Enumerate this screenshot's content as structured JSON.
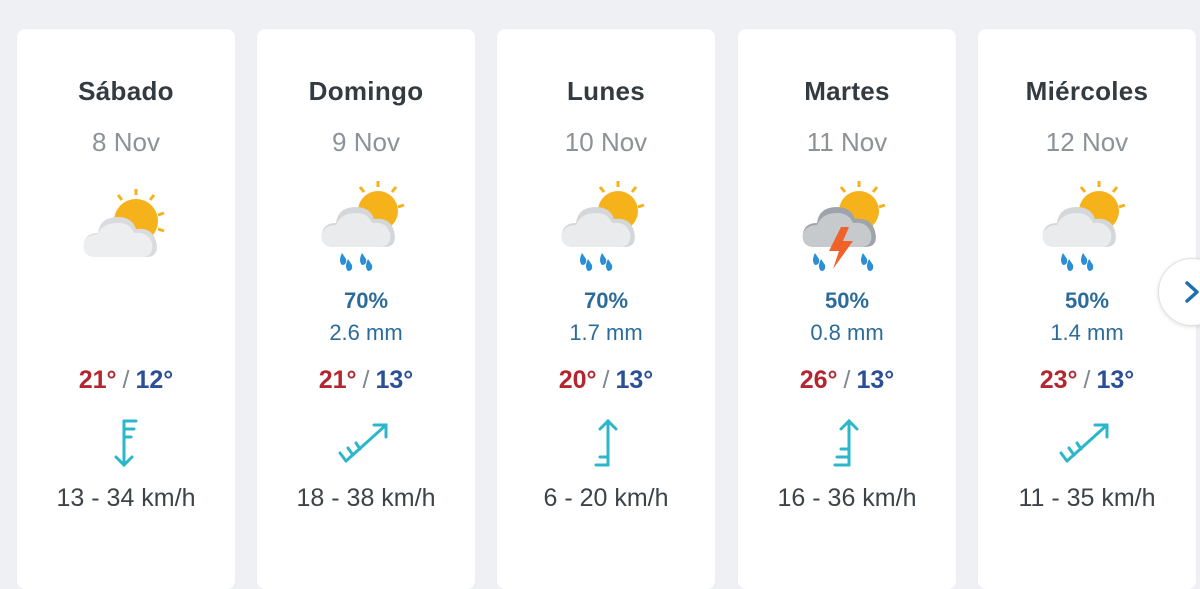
{
  "days": [
    {
      "day": "Sábado",
      "date": "8 Nov",
      "icon": "partly-cloudy-icon",
      "rain_prob": "",
      "rain_mm": "",
      "tmax": "21°",
      "tmin": "12°",
      "wind_dir": "south",
      "wind": "13 - 34 km/h"
    },
    {
      "day": "Domingo",
      "date": "9 Nov",
      "icon": "cloud-sun-rain-icon",
      "rain_prob": "70%",
      "rain_mm": "2.6 mm",
      "tmax": "21°",
      "tmin": "13°",
      "wind_dir": "northeast",
      "wind": "18 - 38 km/h"
    },
    {
      "day": "Lunes",
      "date": "10 Nov",
      "icon": "cloud-sun-rain-icon",
      "rain_prob": "70%",
      "rain_mm": "1.7 mm",
      "tmax": "20°",
      "tmin": "13°",
      "wind_dir": "north",
      "wind": "6 - 20 km/h"
    },
    {
      "day": "Martes",
      "date": "11 Nov",
      "icon": "thunderstorm-icon",
      "rain_prob": "50%",
      "rain_mm": "0.8 mm",
      "tmax": "26°",
      "tmin": "13°",
      "wind_dir": "north",
      "wind": "16 - 36 km/h"
    },
    {
      "day": "Miércoles",
      "date": "12 Nov",
      "icon": "cloud-sun-rain-icon",
      "rain_prob": "50%",
      "rain_mm": "1.4 mm",
      "tmax": "23°",
      "tmin": "13°",
      "wind_dir": "northeast",
      "wind": "11 - 35 km/h"
    }
  ],
  "temp_separator": "/",
  "colors": {
    "max": "#b3262f",
    "min": "#2a4f96",
    "rain": "#2c6c9a",
    "wind_icon": "#2bb7c9",
    "sun": "#f5b21b",
    "bolt": "#f0622a"
  },
  "next_button_icon": "chevron-right-icon"
}
